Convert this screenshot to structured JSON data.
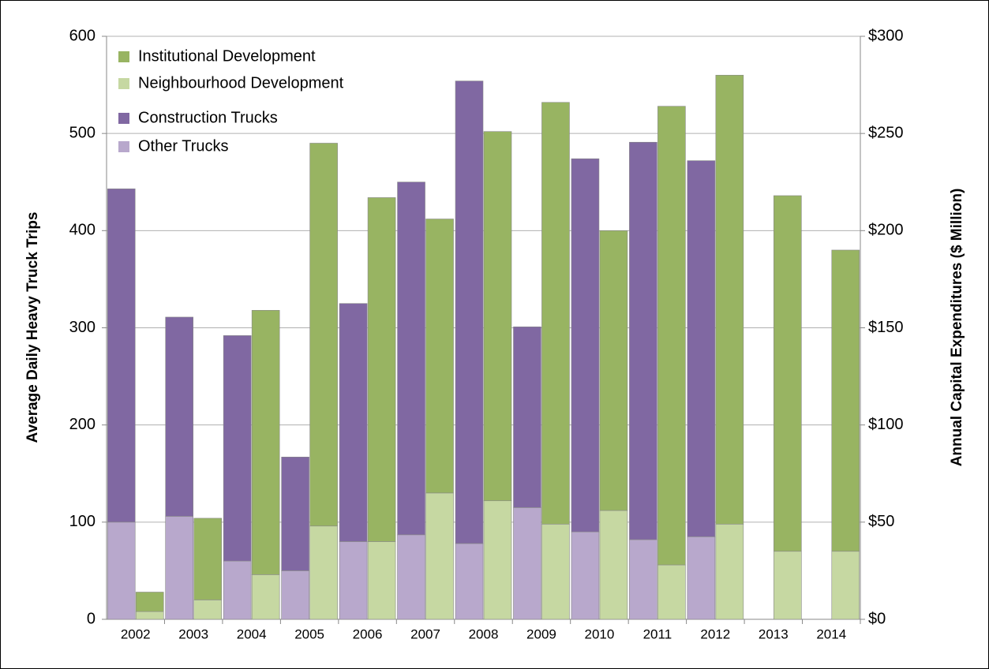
{
  "chart_data": {
    "type": "bar",
    "y_label": "Average Daily Heavy Truck Trips",
    "y2_label": "Annual Capital Expenditures ($ Million)",
    "categories": [
      "2002",
      "2003",
      "2004",
      "2005",
      "2006",
      "2007",
      "2008",
      "2009",
      "2010",
      "2011",
      "2012",
      "2013",
      "2014"
    ],
    "series": [
      {
        "name": "Institutional Development",
        "color": "#98b462",
        "axis": "y2",
        "values": [
          10,
          42,
          136,
          197,
          177,
          141,
          190,
          217,
          144,
          236,
          231,
          183,
          155
        ]
      },
      {
        "name": "Neighbourhood Development",
        "color": "#c6d8a2",
        "axis": "y2",
        "values": [
          4,
          10,
          23,
          48,
          40,
          65,
          61,
          49,
          56,
          28,
          49,
          35,
          35
        ]
      },
      {
        "name": "Construction Trucks",
        "color": "#8068a2",
        "axis": "y",
        "values": [
          343,
          205,
          232,
          117,
          245,
          363,
          476,
          186,
          384,
          409,
          387,
          null,
          null
        ]
      },
      {
        "name": "Other Trucks",
        "color": "#b8a8cc",
        "axis": "y",
        "values": [
          100,
          106,
          60,
          50,
          80,
          87,
          78,
          115,
          90,
          82,
          85,
          null,
          null
        ]
      }
    ],
    "ylim": [
      0,
      600
    ],
    "yticks": [
      0,
      100,
      200,
      300,
      400,
      500,
      600
    ],
    "y2lim": [
      0,
      300
    ],
    "y2ticks": [
      {
        "value": 0,
        "label": "$0"
      },
      {
        "value": 50,
        "label": "$50"
      },
      {
        "value": 100,
        "label": "$100"
      },
      {
        "value": 150,
        "label": "$150"
      },
      {
        "value": 200,
        "label": "$200"
      },
      {
        "value": 250,
        "label": "$250"
      },
      {
        "value": 300,
        "label": "$300"
      }
    ],
    "grid": true,
    "stacked": true,
    "legend": "top-left"
  }
}
